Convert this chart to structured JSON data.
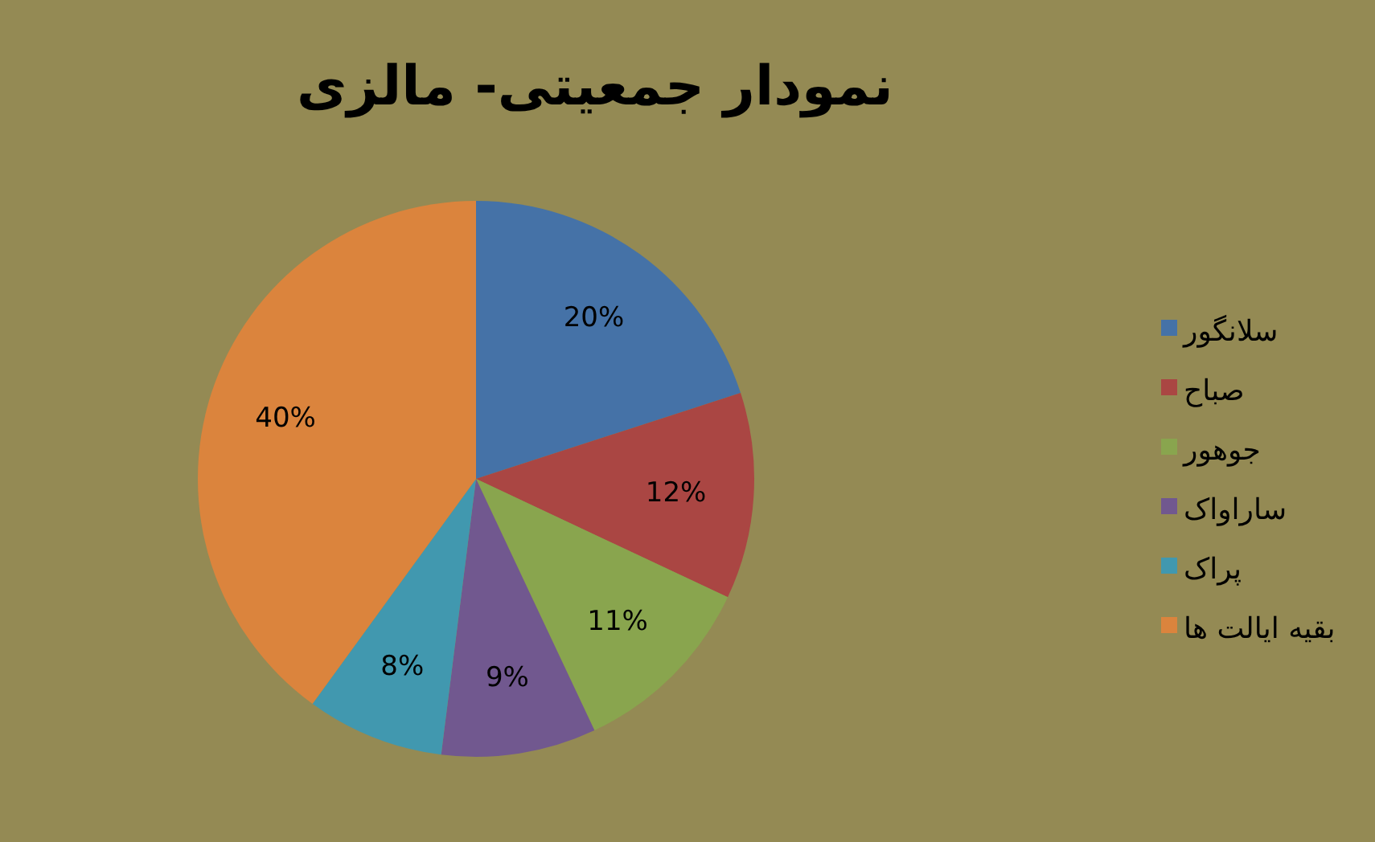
{
  "chart_data": {
    "type": "pie",
    "title": "نمودار جمعیتی- مالزی",
    "categories": [
      "سلانگور",
      "صباح",
      "جوهور",
      "ساراواک",
      "پراک",
      "بقیه ایالت ها"
    ],
    "values": [
      20,
      12,
      11,
      9,
      8,
      40
    ],
    "colors": [
      "#4572a7",
      "#aa4643",
      "#89a54e",
      "#71588f",
      "#4198af",
      "#db843d"
    ],
    "value_labels": [
      "20%",
      "12%",
      "11%",
      "9%",
      "8%",
      "40%"
    ],
    "legend": "right"
  }
}
